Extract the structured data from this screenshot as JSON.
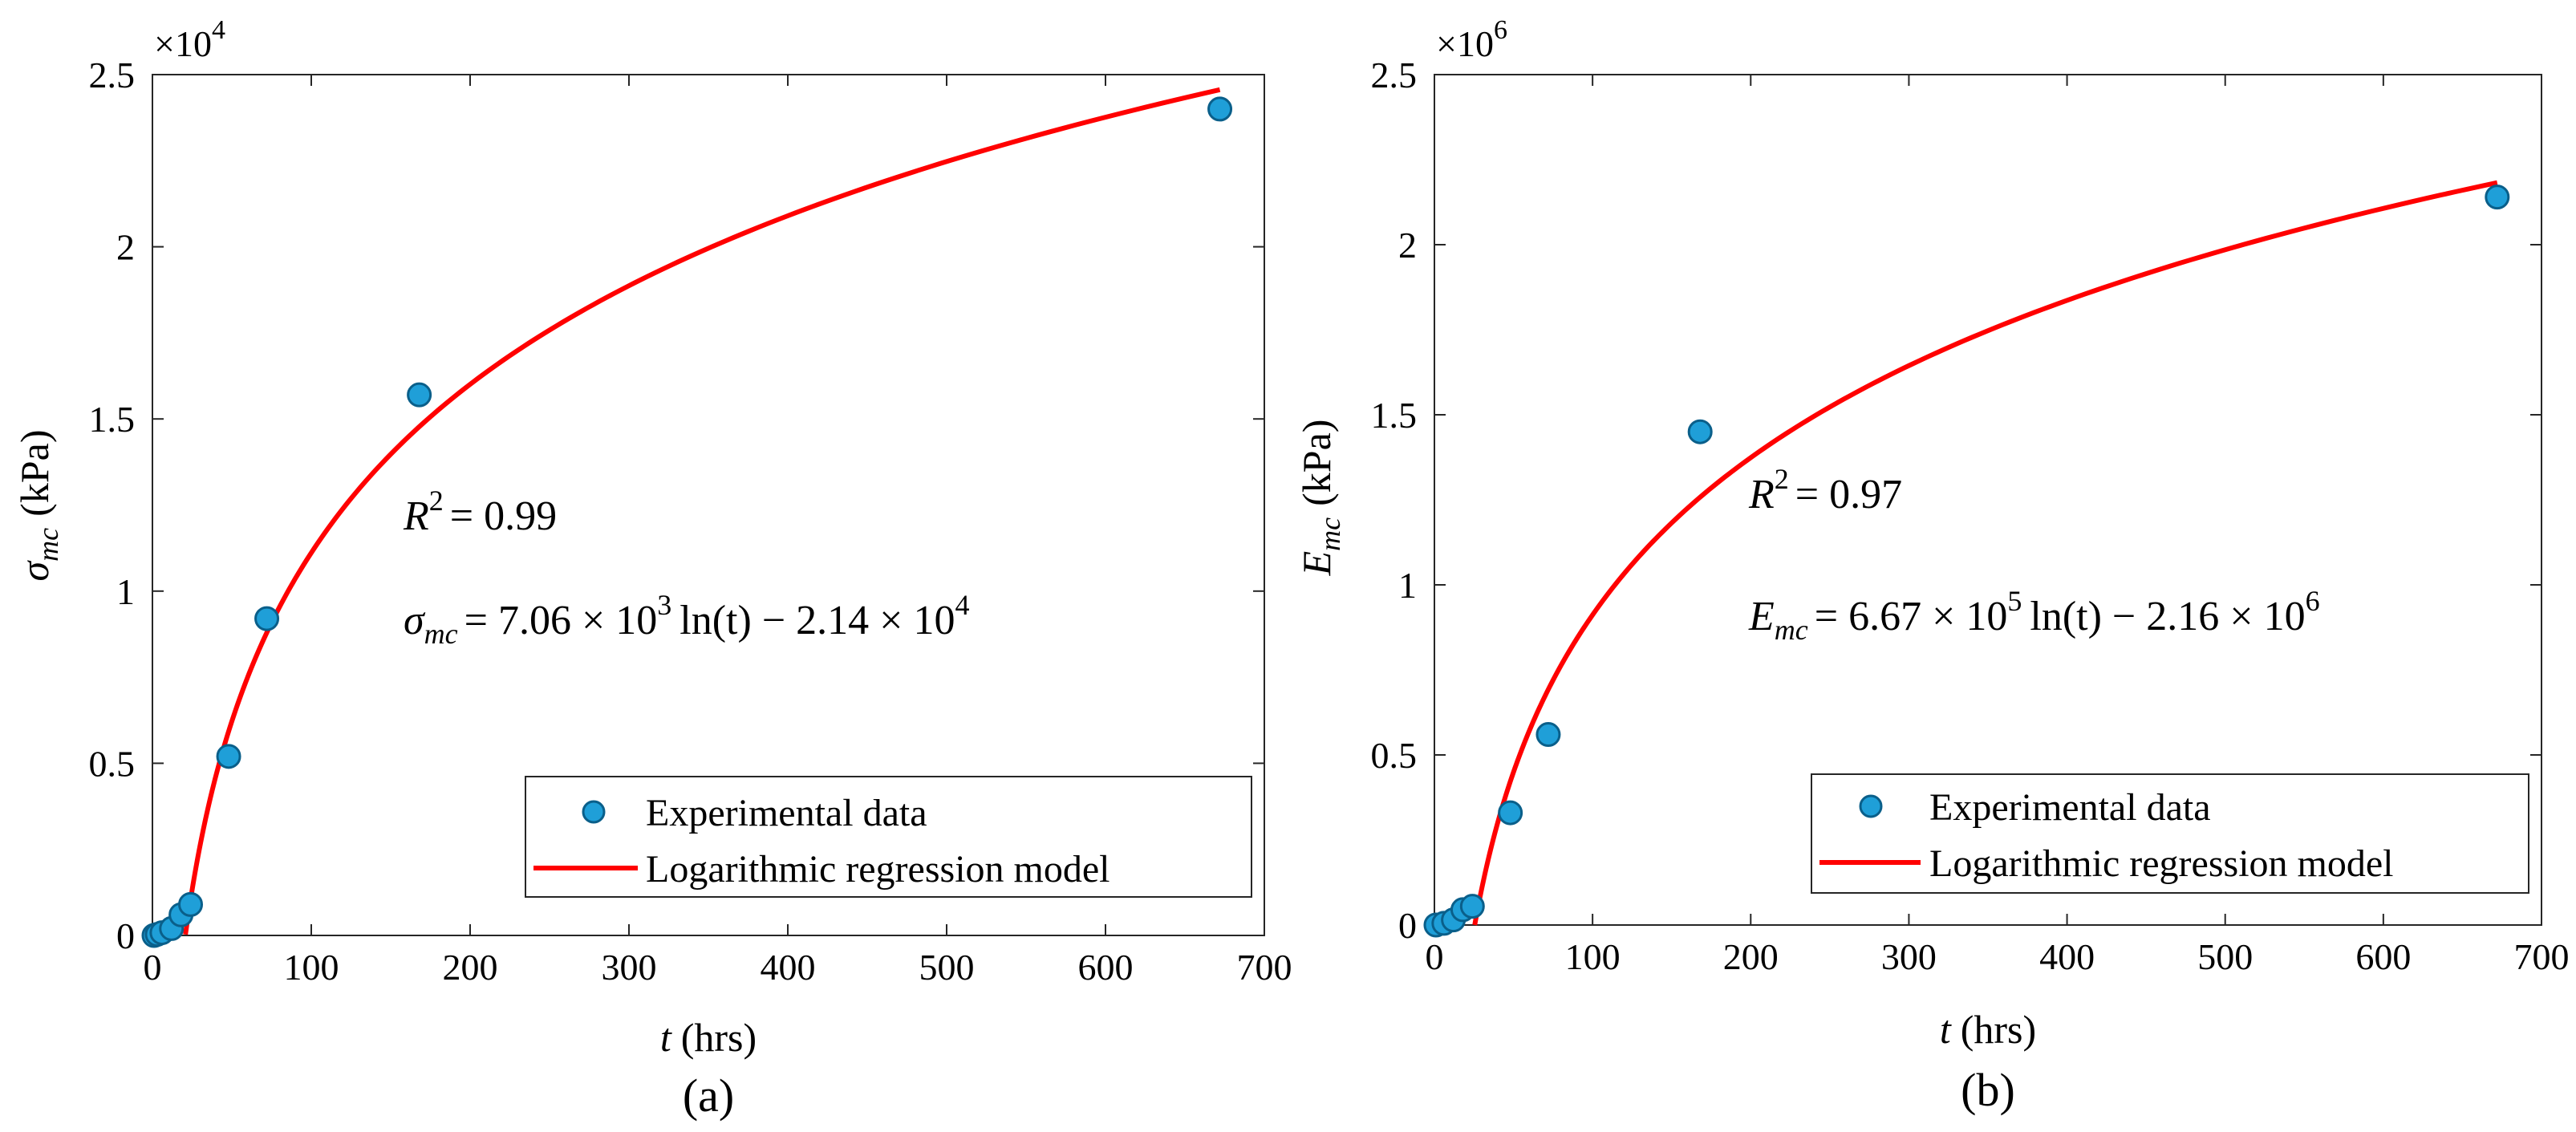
{
  "chart_data": [
    {
      "type": "scatter",
      "panel_label": "(a)",
      "title": "",
      "xlabel_var": "t",
      "xlabel_unit": "(hrs)",
      "ylabel_sym": "σ",
      "ylabel_sub": "mc",
      "ylabel_unit": "(kPa)",
      "xlim": [
        0,
        700
      ],
      "ylim": [
        0,
        25000
      ],
      "x_ticks": [
        0,
        100,
        200,
        300,
        400,
        500,
        600,
        700
      ],
      "x_tick_labels": [
        "0",
        "100",
        "200",
        "300",
        "400",
        "500",
        "600",
        "700"
      ],
      "y_ticks": [
        0,
        5000,
        10000,
        15000,
        20000,
        25000
      ],
      "y_tick_labels": [
        "0",
        "0.5",
        "1",
        "1.5",
        "2",
        "2.5"
      ],
      "y_multiplier_base": "×10",
      "y_multiplier_exp": "4",
      "series": [
        {
          "name": "Experimental data",
          "kind": "scatter",
          "color": "#1f9fd8",
          "edge_color": "#0a5f8a",
          "points": [
            [
              1,
              0
            ],
            [
              3,
              30
            ],
            [
              6,
              80
            ],
            [
              12,
              200
            ],
            [
              18,
              600
            ],
            [
              24,
              900
            ],
            [
              48,
              5200
            ],
            [
              72,
              9200
            ],
            [
              168,
              15700
            ],
            [
              672,
              24000
            ]
          ]
        },
        {
          "name": "Logarithmic regression model",
          "kind": "line",
          "color": "#ff0000",
          "a": 7060,
          "b": -21400,
          "x_range": [
            20.8,
            672
          ]
        }
      ],
      "annotation_r2_sym": "R",
      "annotation_r2_exp": "2",
      "annotation_r2_value": "= 0.99",
      "annotation_eq_sym": "σ",
      "annotation_eq_sub": "mc",
      "annotation_eq_a": "= 7.06 × 10",
      "annotation_eq_a_exp": "3",
      "annotation_eq_mid": "ln(t) − 2.14 × 10",
      "annotation_eq_b_exp": "4",
      "legend_position": "bottom-right"
    },
    {
      "type": "scatter",
      "panel_label": "(b)",
      "title": "",
      "xlabel_var": "t",
      "xlabel_unit": "(hrs)",
      "ylabel_sym": "E",
      "ylabel_sub": "mc",
      "ylabel_unit": "(kPa)",
      "xlim": [
        0,
        700
      ],
      "ylim": [
        0,
        2500000
      ],
      "x_ticks": [
        0,
        100,
        200,
        300,
        400,
        500,
        600,
        700
      ],
      "x_tick_labels": [
        "0",
        "100",
        "200",
        "300",
        "400",
        "500",
        "600",
        "700"
      ],
      "y_ticks": [
        0,
        500000,
        1000000,
        1500000,
        2000000,
        2500000
      ],
      "y_tick_labels": [
        "0",
        "0.5",
        "1",
        "1.5",
        "2",
        "2.5"
      ],
      "y_multiplier_base": "×10",
      "y_multiplier_exp": "6",
      "series": [
        {
          "name": "Experimental data",
          "kind": "scatter",
          "color": "#1f9fd8",
          "edge_color": "#0a5f8a",
          "points": [
            [
              1,
              0
            ],
            [
              6,
              5000
            ],
            [
              12,
              15000
            ],
            [
              18,
              45000
            ],
            [
              24,
              55000
            ],
            [
              48,
              330000
            ],
            [
              72,
              560000
            ],
            [
              168,
              1450000
            ],
            [
              672,
              2140000
            ]
          ]
        },
        {
          "name": "Logarithmic regression model",
          "kind": "line",
          "color": "#ff0000",
          "a": 667000,
          "b": -2160000,
          "x_range": [
            25.5,
            672
          ]
        }
      ],
      "annotation_r2_sym": "R",
      "annotation_r2_exp": "2",
      "annotation_r2_value": "= 0.97",
      "annotation_eq_sym": "E",
      "annotation_eq_sub": "mc",
      "annotation_eq_a": "= 6.67 × 10",
      "annotation_eq_a_exp": "5",
      "annotation_eq_mid": "ln(t) − 2.16 × 10",
      "annotation_eq_b_exp": "6",
      "legend_position": "bottom-right"
    }
  ]
}
